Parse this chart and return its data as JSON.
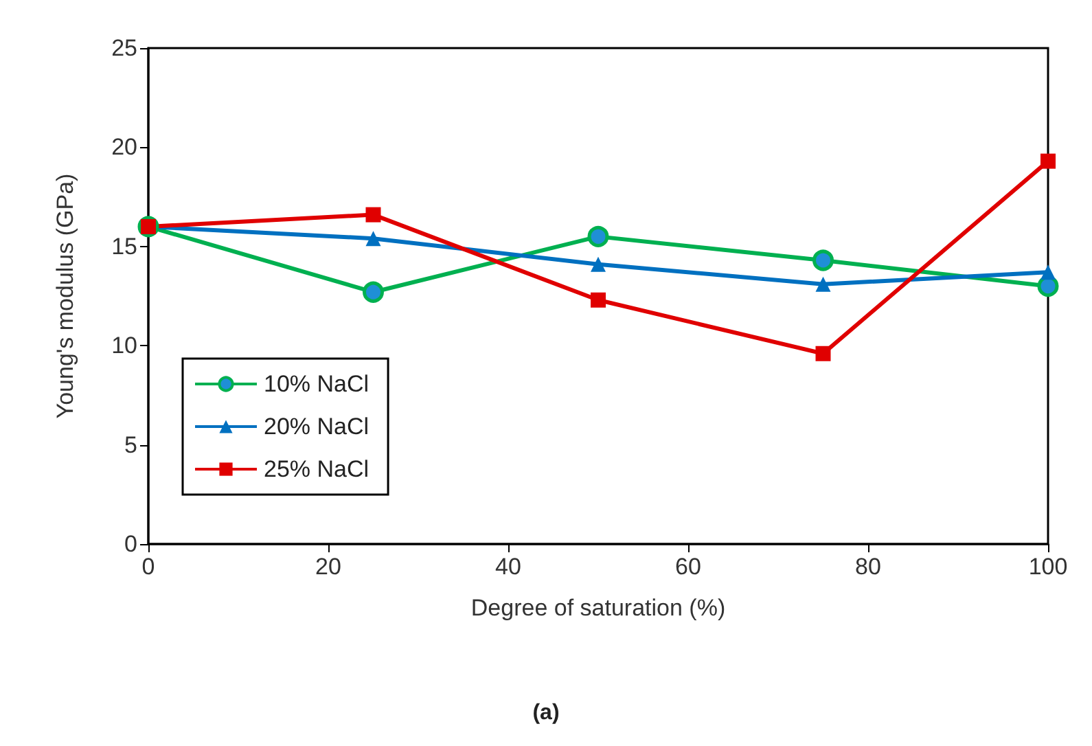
{
  "chart_data": {
    "type": "line",
    "xlabel": "Degree of saturation (%)",
    "ylabel": "Young's modulus (GPa)",
    "annotations": [
      "(a)"
    ],
    "x": [
      0,
      25,
      50,
      75,
      100
    ],
    "xlim": [
      0,
      100
    ],
    "xticks": [
      0,
      20,
      40,
      60,
      80,
      100
    ],
    "ylim": [
      0,
      25
    ],
    "yticks": [
      0,
      5,
      10,
      15,
      20,
      25
    ],
    "grid": false,
    "legend": "bottom left",
    "line_style": "solid",
    "series": [
      {
        "name": "10% NaCl",
        "color": "#00b050",
        "marker": "circle",
        "values": [
          16,
          12.7,
          15.5,
          14.3,
          13
        ]
      },
      {
        "name": "20% NaCl",
        "color": "#0070c0",
        "marker": "triangle",
        "values": [
          16,
          15.4,
          14.1,
          13.1,
          13.7
        ]
      },
      {
        "name": "25% NaCl",
        "color": "#e00000",
        "marker": "square",
        "values": [
          16,
          16.6,
          12.3,
          9.6,
          19.3
        ]
      }
    ]
  }
}
